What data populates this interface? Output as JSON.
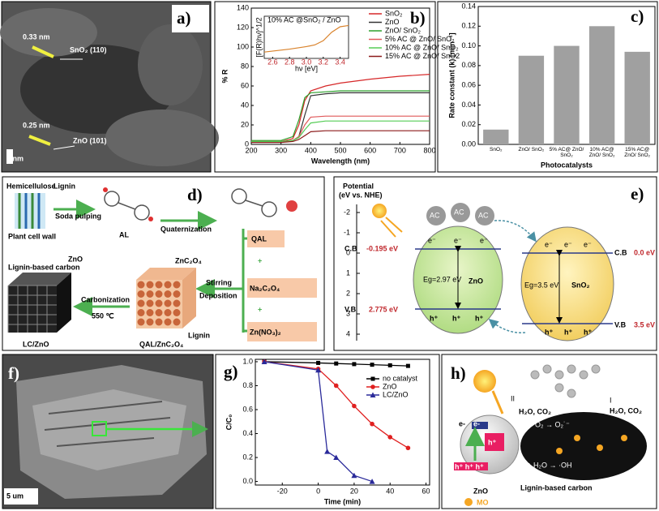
{
  "chart_data": [
    {
      "type": "line",
      "label": "b)",
      "xlabel": "Wavelength (nm)",
      "ylabel": "% R",
      "x": [
        200,
        300,
        340,
        360,
        380,
        400,
        450,
        500,
        600,
        700,
        800
      ],
      "xlim": [
        200,
        800
      ],
      "xticks": [
        200,
        300,
        400,
        500,
        600,
        700,
        800
      ],
      "ylim": [
        0,
        140
      ],
      "yticks": [
        0,
        20,
        40,
        60,
        80,
        100,
        120,
        140
      ],
      "legend": "upper right",
      "series": [
        {
          "name": "SnO₂",
          "color": "#d62728",
          "values": [
            3,
            3,
            6,
            20,
            45,
            55,
            60,
            63,
            67,
            70,
            72
          ]
        },
        {
          "name": "ZnO",
          "color": "#333333",
          "values": [
            3,
            3,
            4,
            8,
            30,
            50,
            52,
            53,
            53,
            53,
            53
          ]
        },
        {
          "name": "ZnO/ SnO₂",
          "color": "#2ca02c",
          "values": [
            4,
            4,
            8,
            25,
            48,
            53,
            54,
            55,
            55,
            55,
            55
          ]
        },
        {
          "name": "5% AC @ ZnO/ SnO₂",
          "color": "#e0585a",
          "values": [
            3,
            3,
            4,
            8,
            20,
            28,
            29,
            29,
            29,
            29,
            29
          ]
        },
        {
          "name": "10%  AC @ ZnO/ SnO₂",
          "color": "#55cc55",
          "values": [
            3,
            3,
            4,
            7,
            15,
            22,
            24,
            24,
            24,
            24,
            24
          ]
        },
        {
          "name": "15% AC @ ZnO/ SnO2",
          "color": "#8b1a1a",
          "values": [
            2,
            2,
            3,
            5,
            9,
            13,
            14,
            14,
            14,
            14,
            14
          ]
        }
      ],
      "inset": {
        "title": "10% AC @SnO₂ / ZnO",
        "xlabel": "hν [eV]",
        "ylabel": "[F(R)hν]^1/2",
        "xlim": [
          2.5,
          3.5
        ],
        "xticks": [
          2.6,
          2.8,
          {
            "value": 3,
            "label": "3.0"
          },
          3.2,
          3.4
        ],
        "ylim": [
          0,
          1
        ],
        "x": [
          2.5,
          2.8,
          3.0,
          3.1,
          3.2,
          3.3,
          3.4,
          3.5
        ],
        "values": [
          0.15,
          0.22,
          0.28,
          0.32,
          0.42,
          0.62,
          0.75,
          0.78
        ],
        "color": "#d9822b"
      }
    },
    {
      "type": "bar",
      "label": "c)",
      "xlabel": "Photocatalysts",
      "ylabel": "Rate constant (k) [min⁻¹]",
      "categories": [
        "SnO₂",
        "ZnO/ SnO₂",
        "5% AC@ ZnO/ SnO₂",
        "10% AC@ ZnO/ SnO₂",
        "15% AC@ ZnO/ SnO₂"
      ],
      "values": [
        0.015,
        0.09,
        0.1,
        0.12,
        0.094
      ],
      "color": "#a0a0a0",
      "ylim": [
        0,
        0.14
      ],
      "yticks": [
        {
          "value": 0,
          "label": "0.00"
        },
        0.02,
        0.04,
        0.06,
        0.08,
        {
          "value": 0.1,
          "label": "0.10"
        },
        0.12,
        0.14
      ]
    },
    {
      "type": "line",
      "label": "g)",
      "xlabel": "Time (min)",
      "ylabel": "C/C₀",
      "xlim": [
        -35,
        62
      ],
      "xticks": [
        -20,
        0,
        20,
        40,
        60
      ],
      "ylim": [
        -0.03,
        1.02
      ],
      "yticks": [
        {
          "value": 0,
          "label": "0.0"
        },
        0.2,
        0.4,
        0.6,
        0.8,
        {
          "value": 1,
          "label": "1.0"
        }
      ],
      "legend": "upper right",
      "series": [
        {
          "name": "no catalyst",
          "color": "#000000",
          "marker": "square",
          "x": [
            -30,
            0,
            10,
            20,
            30,
            40,
            50
          ],
          "values": [
            1.0,
            0.99,
            0.985,
            0.98,
            0.975,
            0.97,
            0.965
          ]
        },
        {
          "name": "ZnO",
          "color": "#e02020",
          "marker": "circle",
          "x": [
            -30,
            0,
            10,
            20,
            30,
            40,
            50
          ],
          "values": [
            1.0,
            0.94,
            0.8,
            0.63,
            0.48,
            0.37,
            0.28
          ]
        },
        {
          "name": "LC/ZnO",
          "color": "#2a2a9a",
          "marker": "triangle",
          "x": [
            -30,
            0,
            5,
            10,
            20,
            30
          ],
          "values": [
            1.0,
            0.93,
            0.25,
            0.2,
            0.05,
            0.0
          ]
        }
      ]
    }
  ],
  "panel_a": {
    "label": "a)",
    "texts": [
      "0.33 nm",
      "SnO₂ (110)",
      "0.25 nm",
      "ZnO (101)"
    ],
    "scale_bar": "2 nm"
  },
  "panel_d": {
    "label": "d)",
    "texts": {
      "hemicellulose": "Hemicellulose",
      "lignin": "Lignin",
      "plant_cell_wall": "Plant cell wall",
      "soda_pulping": "Soda pulping",
      "al": "AL",
      "quaternization": "Quaternization",
      "qal": "QAL",
      "plus": "+",
      "na2c2o4": "Na₂C₂O₄",
      "zn_no3": "Zn(NO₃)₂",
      "stirring": "Stirring",
      "deposition": "Deposition",
      "znc2o4": "ZnC₂O₄",
      "lignin2": "Lignin",
      "qal_znc2o4": "QAL/ZnC₂O₄",
      "carbonization": "Carbonization",
      "temp": "550 ℃",
      "lignin_carbon": "Lignin-based carbon",
      "zno": "ZnO",
      "lc_zno": "LC/ZnO"
    }
  },
  "panel_e": {
    "label": "e)",
    "potential": "Potential",
    "reference": "(eV vs. NHE)",
    "potential_ticks": [
      -2,
      -1,
      0,
      1,
      2,
      3,
      4
    ],
    "ac": "AC",
    "electron": "e⁻",
    "hole": "h⁺",
    "zno": "ZnO",
    "sno2": "SnO₂",
    "zno_gap": "Eg=2.97 eV",
    "sno2_gap": "Eg=3.5 eV",
    "cb": "C.B",
    "vb": "V.B",
    "zno_cb": "-0.195 eV",
    "zno_vb": "2.775 eV",
    "sno2_cb": "0.0 eV",
    "sno2_vb": "3.5 eV"
  },
  "panel_f": {
    "label": "f)",
    "scale_bar": "5 um"
  },
  "panel_h": {
    "label": "h)",
    "path_1": "I",
    "path_2": "II",
    "products": "H₂O, CO₂",
    "electron": "e-",
    "hole": "h⁺",
    "holes": "h⁺ h⁺ h⁺",
    "reaction_1": "e⁻ + O₂ → O₂˙⁻",
    "reaction_2": "h⁺ + H₂O → ·OH",
    "zno": "ZnO",
    "carbon": "Lignin-based carbon",
    "mo": "MO"
  }
}
